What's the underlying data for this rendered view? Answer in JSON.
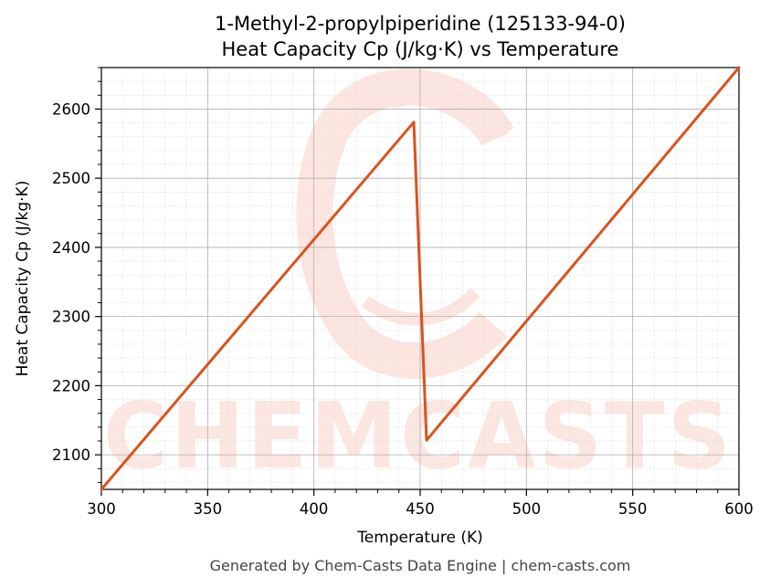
{
  "chart_data": {
    "type": "line",
    "title": "1-Methyl-2-propylpiperidine (125133-94-0)",
    "subtitle": "Heat Capacity Cp (J/kg·K) vs Temperature",
    "xlabel": "Temperature (K)",
    "ylabel": "Heat Capacity Cp (J/kg·K)",
    "xlim": [
      300,
      600
    ],
    "ylim": [
      2050,
      2660
    ],
    "xticks": [
      300,
      350,
      400,
      450,
      500,
      550,
      600
    ],
    "yticks": [
      2100,
      2200,
      2300,
      2400,
      2500,
      2600
    ],
    "grid": true,
    "series": [
      {
        "color": "#d9531e",
        "x": [
          300,
          447,
          453,
          600
        ],
        "y": [
          2050,
          2581,
          2121,
          2660
        ]
      }
    ]
  },
  "watermark": {
    "text": "CHEMCASTS",
    "color": "#fbd3cc"
  },
  "footer": "Generated by Chem-Casts Data Engine | chem-casts.com"
}
